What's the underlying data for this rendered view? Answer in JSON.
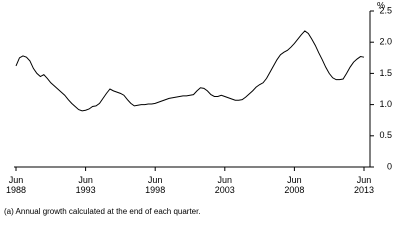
{
  "chart_data": {
    "type": "line",
    "y_unit": "%",
    "footnote": "(a) Annual growth calculated at the end of each quarter.",
    "categories": [
      "Jun 1988",
      null,
      null,
      null,
      null,
      null,
      null,
      null,
      null,
      null,
      null,
      null,
      null,
      null,
      null,
      null,
      null,
      null,
      null,
      null,
      "Jun 1993",
      null,
      null,
      null,
      null,
      null,
      null,
      null,
      null,
      null,
      null,
      null,
      null,
      null,
      null,
      null,
      null,
      null,
      null,
      null,
      "Jun 1998",
      null,
      null,
      null,
      null,
      null,
      null,
      null,
      null,
      null,
      null,
      null,
      null,
      null,
      null,
      null,
      null,
      null,
      null,
      null,
      "Jun 2003",
      null,
      null,
      null,
      null,
      null,
      null,
      null,
      null,
      null,
      null,
      null,
      null,
      null,
      null,
      null,
      null,
      null,
      null,
      null,
      "Jun 2008",
      null,
      null,
      null,
      null,
      null,
      null,
      null,
      null,
      null,
      null,
      null,
      null,
      null,
      null,
      null,
      null,
      null,
      null,
      null,
      "Jun 2013"
    ],
    "values": [
      1.62,
      1.75,
      1.78,
      1.76,
      1.7,
      1.58,
      1.5,
      1.45,
      1.48,
      1.42,
      1.35,
      1.3,
      1.25,
      1.2,
      1.15,
      1.08,
      1.02,
      0.97,
      0.92,
      0.9,
      0.91,
      0.93,
      0.97,
      0.98,
      1.02,
      1.1,
      1.18,
      1.25,
      1.22,
      1.2,
      1.18,
      1.15,
      1.08,
      1.02,
      0.98,
      0.99,
      1.0,
      1.0,
      1.01,
      1.01,
      1.02,
      1.04,
      1.06,
      1.08,
      1.1,
      1.11,
      1.12,
      1.13,
      1.14,
      1.14,
      1.15,
      1.16,
      1.22,
      1.27,
      1.26,
      1.22,
      1.16,
      1.13,
      1.13,
      1.15,
      1.13,
      1.11,
      1.09,
      1.07,
      1.07,
      1.08,
      1.12,
      1.17,
      1.22,
      1.28,
      1.32,
      1.35,
      1.42,
      1.52,
      1.62,
      1.72,
      1.8,
      1.84,
      1.87,
      1.92,
      1.98,
      2.05,
      2.12,
      2.18,
      2.14,
      2.05,
      1.95,
      1.83,
      1.72,
      1.6,
      1.5,
      1.43,
      1.4,
      1.4,
      1.41,
      1.5,
      1.6,
      1.68,
      1.73,
      1.77,
      1.76
    ],
    "color": "#000000",
    "ylim": [
      0,
      2.5
    ],
    "yticks": [
      0,
      0.5,
      {
        "value": 1,
        "label": "1.0"
      },
      1.5,
      {
        "value": 2,
        "label": "2.0"
      },
      2.5
    ],
    "y_axis_side": "right",
    "grid": false
  }
}
